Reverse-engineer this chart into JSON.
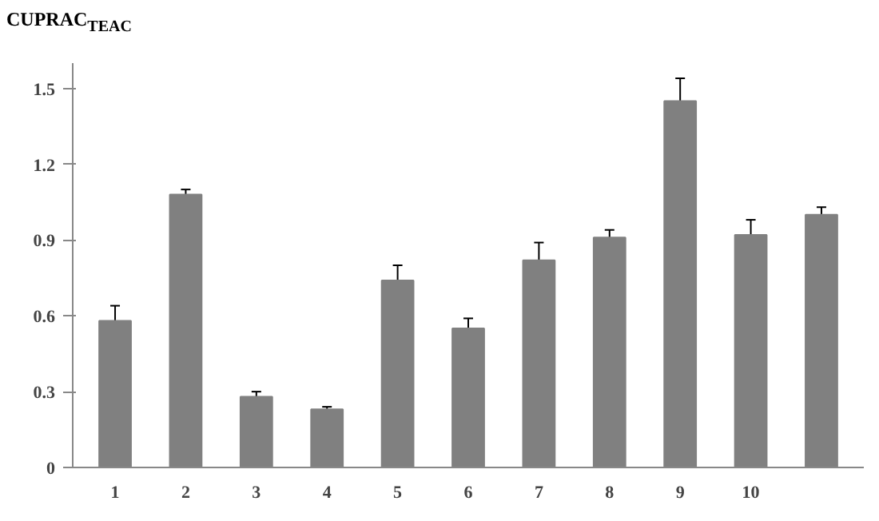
{
  "chart_data": {
    "type": "bar",
    "ylabel": "CUPRAC$_{TEAC}$",
    "categories": [
      "1",
      "2",
      "3",
      "4",
      "5",
      "6",
      "7",
      "8",
      "9",
      "10",
      null
    ],
    "values": [
      0.58,
      1.08,
      0.28,
      0.23,
      0.74,
      0.55,
      0.82,
      0.91,
      1.45,
      0.92,
      1.0
    ],
    "errors": [
      0.06,
      0.02,
      0.02,
      0.01,
      0.06,
      0.04,
      0.07,
      0.03,
      0.09,
      0.06,
      0.03
    ],
    "color": "#808080",
    "ylim": [
      0,
      1.6
    ],
    "yticks": [
      0,
      0.3,
      0.6,
      0.9,
      1.2,
      1.5
    ],
    "grid": false
  }
}
